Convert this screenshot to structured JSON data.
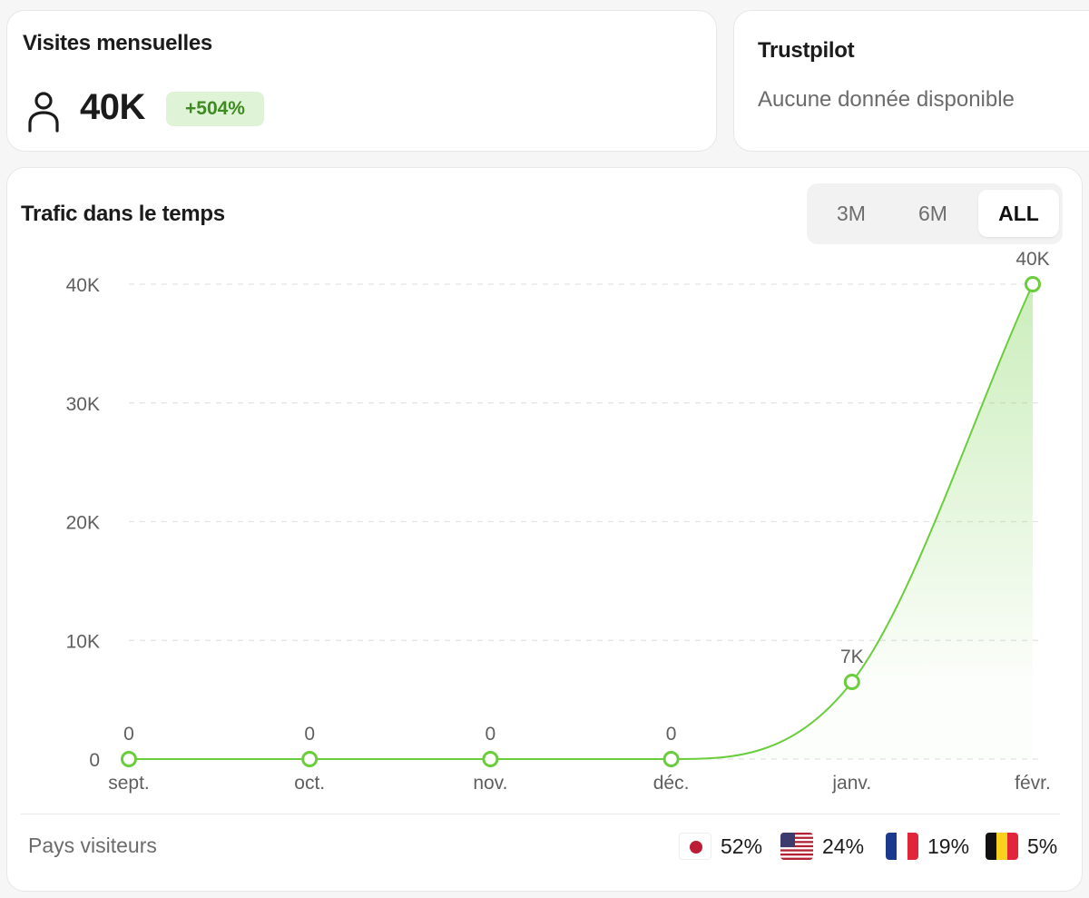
{
  "visits": {
    "title": "Visites mensuelles",
    "value": "40K",
    "growth": "+504%",
    "icon": "user-icon"
  },
  "trustpilot": {
    "title": "Trustpilot",
    "status": "Aucune donnée disponible"
  },
  "traffic": {
    "title": "Trafic dans le temps",
    "ranges": [
      "3M",
      "6M",
      "ALL"
    ],
    "selected_range": "ALL"
  },
  "chart_data": {
    "type": "area",
    "categories": [
      "sept.",
      "oct.",
      "nov.",
      "déc.",
      "janv.",
      "févr."
    ],
    "values": [
      0,
      0,
      0,
      0,
      6500,
      40000
    ],
    "value_labels": [
      "0",
      "0",
      "0",
      "0",
      "7K",
      "40K"
    ],
    "y_ticks": [
      0,
      10000,
      20000,
      30000,
      40000
    ],
    "y_tick_labels": [
      "0",
      "10K",
      "20K",
      "30K",
      "40K"
    ],
    "ylim": [
      0,
      40000
    ],
    "grid": true,
    "line_color": "#6acd3c"
  },
  "countries": {
    "label": "Pays visiteurs",
    "items": [
      {
        "flag": "japan-flag-icon",
        "pct": "52%"
      },
      {
        "flag": "usa-flag-icon",
        "pct": "24%"
      },
      {
        "flag": "france-flag-icon",
        "pct": "19%"
      },
      {
        "flag": "belgium-flag-icon",
        "pct": "5%"
      }
    ]
  },
  "colors": {
    "accent": "#6acd3c",
    "badge_bg": "#dff3d6",
    "badge_text": "#3e8a23"
  }
}
